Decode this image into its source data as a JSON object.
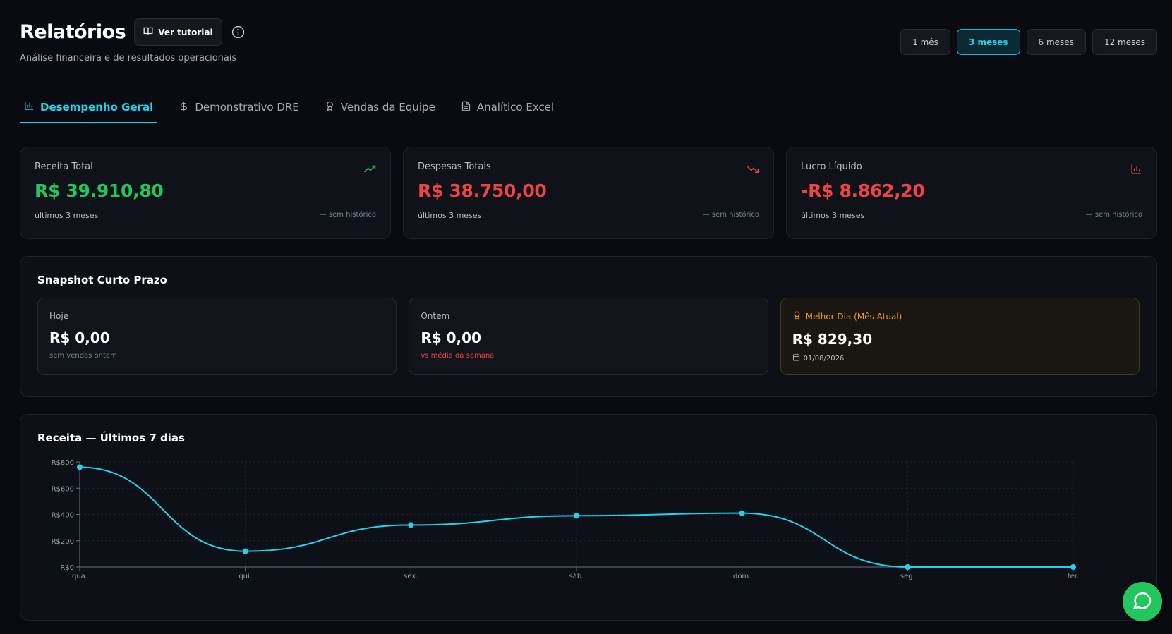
{
  "header": {
    "title": "Relatórios",
    "tutorial_label": "Ver tutorial",
    "subtitle": "Análise financeira e de resultados operacionais",
    "periods": [
      "1 mês",
      "3 meses",
      "6 meses",
      "12 meses"
    ],
    "active_period": "3 meses"
  },
  "tabs": [
    {
      "label": "Desempenho Geral",
      "icon": "bar-chart-icon"
    },
    {
      "label": "Demonstrativo DRE",
      "icon": "dollar-icon"
    },
    {
      "label": "Vendas da Equipe",
      "icon": "award-icon"
    },
    {
      "label": "Analítico Excel",
      "icon": "file-spreadsheet-icon"
    }
  ],
  "kpis": [
    {
      "label": "Receita Total",
      "value": "R$ 39.910,80",
      "period": "últimos 3 meses",
      "history": "— sem histórico",
      "color": "#22c55e",
      "icon": "trending-up-icon"
    },
    {
      "label": "Despesas Totais",
      "value": "R$ 38.750,00",
      "period": "últimos 3 meses",
      "history": "— sem histórico",
      "color": "#ef4444",
      "icon": "trending-down-icon"
    },
    {
      "label": "Lucro Líquido",
      "value": "-R$ 8.862,20",
      "period": "últimos 3 meses",
      "history": "— sem histórico",
      "color": "#ef4444",
      "icon": "bar-chart-icon"
    }
  ],
  "snapshot": {
    "title": "Snapshot Curto Prazo",
    "today": {
      "label": "Hoje",
      "value": "R$ 0,00",
      "note": "sem vendas ontem"
    },
    "yesterday": {
      "label": "Ontem",
      "value": "R$ 0,00",
      "note": "vs média da semana"
    },
    "best_day": {
      "label": "Melhor Dia (Mês Atual)",
      "value": "R$ 829,30",
      "date": "01/08/2026"
    }
  },
  "chart_title": "Receita — Últimos 7 dias",
  "chart_data": {
    "type": "line",
    "title": "Receita — Últimos 7 dias",
    "categories": [
      "qua.",
      "qui.",
      "sex.",
      "sáb.",
      "dom.",
      "seg.",
      "ter."
    ],
    "values": [
      760,
      120,
      320,
      390,
      410,
      0,
      0
    ],
    "ylim": [
      0,
      800
    ],
    "yticks": [
      "R$0",
      "R$200",
      "R$400",
      "R$600",
      "R$800"
    ],
    "ytick_values": [
      0,
      200,
      400,
      600,
      800
    ],
    "grid": true,
    "color": "#22d3ee"
  },
  "colors": {
    "accent": "#22d3ee",
    "positive": "#22c55e",
    "negative": "#ef4444",
    "warning": "#f59e0b",
    "whatsapp": "#22c55e"
  }
}
